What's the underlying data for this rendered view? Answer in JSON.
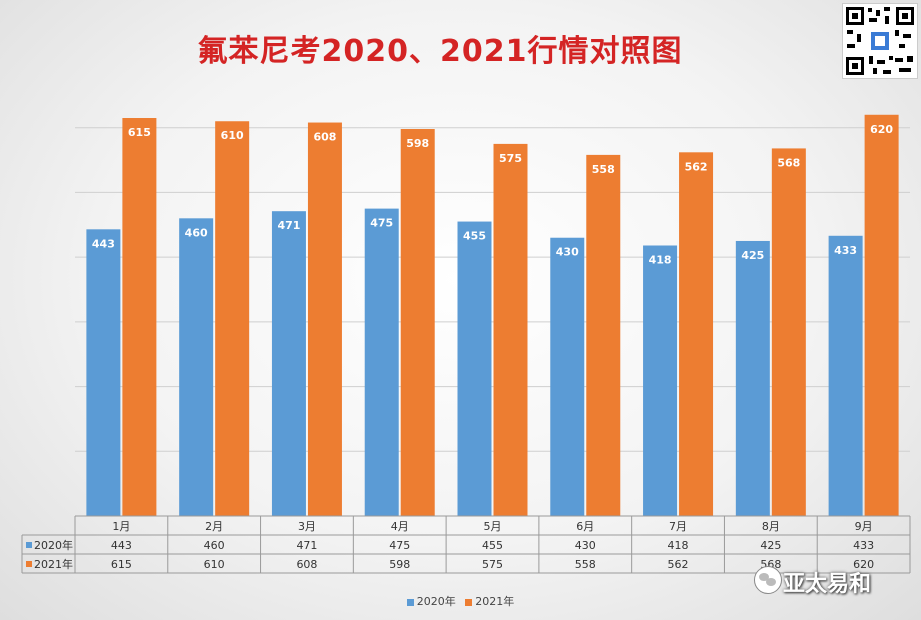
{
  "chart_data": {
    "type": "bar",
    "title": "氟苯尼考2020、2021行情对照图",
    "categories": [
      "1月",
      "2月",
      "3月",
      "4月",
      "5月",
      "6月",
      "7月",
      "8月",
      "9月"
    ],
    "series": [
      {
        "name": "2020年",
        "values": [
          443,
          460,
          471,
          475,
          455,
          430,
          418,
          425,
          433
        ],
        "color": "#5b9bd5"
      },
      {
        "name": "2021年",
        "values": [
          615,
          610,
          608,
          598,
          575,
          558,
          562,
          568,
          620
        ],
        "color": "#ed7d31"
      }
    ],
    "ylim": [
      0,
      700
    ],
    "grid": true,
    "data_table": true,
    "legend_position": "bottom"
  },
  "watermark": {
    "text": "亚太易和"
  }
}
